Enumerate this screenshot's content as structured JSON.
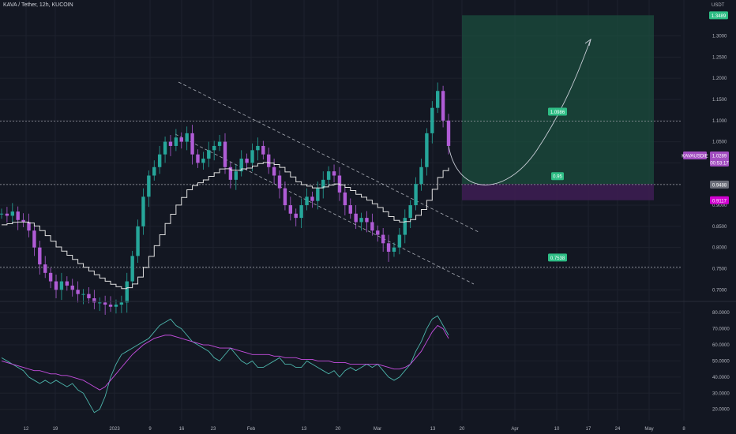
{
  "header": {
    "title": "KAVA / Tether, 12h, KUCOIN",
    "currency": "USDT"
  },
  "colors": {
    "background": "#131722",
    "grid": "#1e222d",
    "up": "#26a69a",
    "down": "#b05cd6",
    "target_zone": "#1b4d3e",
    "stop_zone": "#3e1d54",
    "price_tag": "#2ebd85",
    "purple_tag": "#a24ec0",
    "channel_line": "#d1d4dc",
    "staircase_line": "#e0e0e0",
    "rsi_teal": "#4db6ac",
    "rsi_purple": "#c64ee0"
  },
  "annotations": {
    "target_price": "1.0986",
    "entry_price": "0.95",
    "support_price": "0.7538",
    "top_tag": "1.3489",
    "current_tag": "1.0289",
    "current_sub": "00:53:17",
    "symbol_tag": "KAVAUSDIE",
    "level_tag": "0.9488",
    "stop_tag": "0.9117"
  },
  "chart_data": [
    {
      "type": "candlestick",
      "title": "KAVA / Tether, 12h, KUCOIN",
      "y_unit": "USDT",
      "ylim": [
        0.68,
        1.37
      ],
      "y_ticks": [
        "1.3000",
        "1.2500",
        "1.2000",
        "1.1500",
        "1.1000",
        "1.0500",
        "1.0000",
        "0.9500",
        "0.9000",
        "0.8500",
        "0.8000",
        "0.7500",
        "0.7000"
      ],
      "x_ticks": [
        "12",
        "19",
        "2023",
        "9",
        "16",
        "23",
        "Feb",
        "13",
        "20",
        "Mar",
        "13",
        "20",
        "Apr",
        "10",
        "17",
        "24",
        "May",
        "8"
      ],
      "horizontal_levels": [
        1.0986,
        0.9488,
        0.7538
      ],
      "closes": [
        0.88,
        0.875,
        0.885,
        0.865,
        0.86,
        0.84,
        0.8,
        0.76,
        0.74,
        0.72,
        0.7,
        0.72,
        0.71,
        0.7,
        0.69,
        0.69,
        0.68,
        0.67,
        0.67,
        0.665,
        0.66,
        0.665,
        0.67,
        0.72,
        0.78,
        0.85,
        0.92,
        0.97,
        0.99,
        1.02,
        1.05,
        1.04,
        1.06,
        1.05,
        1.07,
        1.02,
        1.0,
        1.01,
        1.03,
        1.04,
        1.05,
        0.99,
        0.96,
        0.98,
        1.01,
        1.0,
        1.03,
        1.04,
        1.02,
        0.99,
        0.97,
        0.94,
        0.9,
        0.88,
        0.87,
        0.9,
        0.92,
        0.91,
        0.94,
        0.96,
        0.98,
        0.97,
        0.93,
        0.9,
        0.88,
        0.86,
        0.87,
        0.86,
        0.84,
        0.83,
        0.81,
        0.79,
        0.8,
        0.83,
        0.87,
        0.9,
        0.95,
        0.99,
        1.07,
        1.13,
        1.17,
        1.1,
        1.04
      ],
      "targets": {
        "target": 1.0986,
        "entry": 0.95,
        "support": 0.7538,
        "zone_top": 1.3489,
        "stop": 0.9117
      }
    },
    {
      "type": "line",
      "title": "",
      "ylim": [
        13,
        84
      ],
      "y_ticks": [
        "80.0000",
        "70.0000",
        "60.0000",
        "50.0000",
        "40.0000",
        "30.0000",
        "20.0000"
      ],
      "series": [
        {
          "values": [
            52,
            50,
            48,
            46,
            44,
            40,
            38,
            36,
            38,
            36,
            38,
            36,
            34,
            36,
            32,
            30,
            24,
            18,
            20,
            28,
            40,
            48,
            54,
            56,
            58,
            60,
            62,
            64,
            68,
            72,
            74,
            76,
            72,
            70,
            66,
            62,
            60,
            58,
            56,
            52,
            50,
            54,
            58,
            54,
            50,
            48,
            50,
            46,
            46,
            48,
            50,
            52,
            48,
            48,
            46,
            46,
            50,
            48,
            46,
            44,
            42,
            44,
            40,
            44,
            46,
            44,
            46,
            48,
            46,
            48,
            44,
            40,
            38,
            40,
            44,
            48,
            56,
            62,
            70,
            76,
            78,
            72,
            66
          ]
        },
        {
          "values": [
            50,
            49,
            48,
            47,
            46,
            45,
            44,
            44,
            43,
            42,
            42,
            41,
            41,
            40,
            39,
            38,
            36,
            34,
            32,
            34,
            38,
            42,
            46,
            50,
            54,
            57,
            60,
            62,
            64,
            65,
            66,
            66,
            65,
            64,
            63,
            62,
            61,
            60,
            60,
            59,
            58,
            58,
            58,
            57,
            56,
            55,
            54,
            54,
            54,
            54,
            53,
            53,
            52,
            52,
            52,
            51,
            51,
            51,
            50,
            50,
            50,
            49,
            49,
            49,
            48,
            48,
            48,
            48,
            48,
            48,
            47,
            46,
            45,
            45,
            46,
            48,
            52,
            56,
            62,
            68,
            72,
            70,
            64
          ]
        }
      ]
    }
  ]
}
